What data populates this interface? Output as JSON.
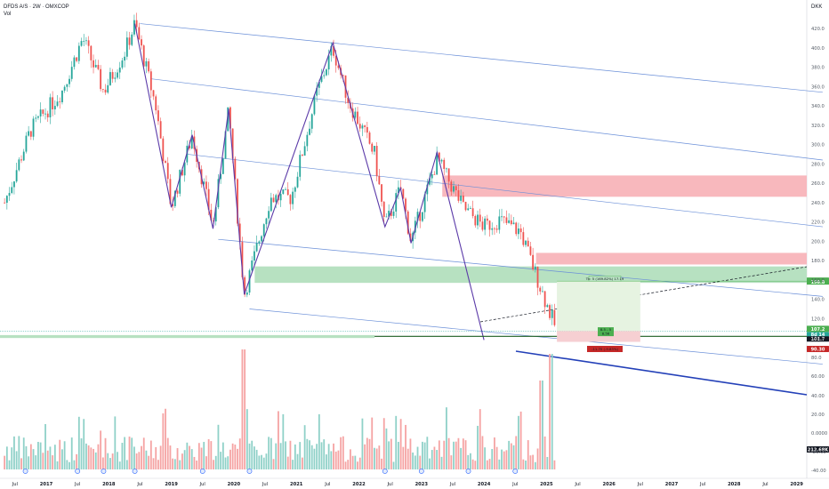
{
  "header": {
    "symbol_line": "DFDS A/S · 2W · OMXCOP",
    "indicator": "Vol",
    "currency": "DKK"
  },
  "chart_data": {
    "type": "candlestick",
    "yaxis": {
      "price_ticks": [
        420.0,
        400.0,
        380.0,
        360.0,
        340.0,
        320.0,
        300.0,
        280.0,
        260.0,
        240.0,
        220.0,
        200.0,
        180.0,
        160.0,
        140.0,
        120.0,
        100.0,
        80.0
      ],
      "volume_ticks": [
        "60.00",
        "40.00",
        "20.00",
        "0.0000",
        "-20.00",
        "-40.00"
      ],
      "ylim": [
        76,
        432
      ]
    },
    "xaxis": {
      "labels": [
        "Jul",
        "2017",
        "Jul",
        "2018",
        "Jul",
        "2019",
        "Jul",
        "2020",
        "Jul",
        "2021",
        "Jul",
        "2022",
        "Jul",
        "2023",
        "Jul",
        "2024",
        "Jul",
        "2025",
        "Jul",
        "2026",
        "Jul",
        "2027",
        "Jul",
        "2028",
        "Jul",
        "2029"
      ]
    },
    "key_points": [
      {
        "date": "2016-05",
        "close": 240
      },
      {
        "date": "2016-10",
        "close": 315
      },
      {
        "date": "2017-04",
        "close": 355
      },
      {
        "date": "2017-08",
        "close": 410
      },
      {
        "date": "2017-12",
        "close": 355
      },
      {
        "date": "2018-04",
        "close": 395
      },
      {
        "date": "2018-06",
        "close": 425
      },
      {
        "date": "2018-10",
        "close": 340
      },
      {
        "date": "2019-01",
        "close": 235
      },
      {
        "date": "2019-05",
        "close": 310
      },
      {
        "date": "2019-09",
        "close": 215
      },
      {
        "date": "2019-12",
        "close": 335
      },
      {
        "date": "2020-03",
        "close": 145
      },
      {
        "date": "2020-08",
        "close": 245
      },
      {
        "date": "2020-12",
        "close": 245
      },
      {
        "date": "2021-05",
        "close": 355
      },
      {
        "date": "2021-08",
        "close": 400
      },
      {
        "date": "2021-11",
        "close": 345
      },
      {
        "date": "2022-04",
        "close": 290
      },
      {
        "date": "2022-06",
        "close": 215
      },
      {
        "date": "2022-09",
        "close": 255
      },
      {
        "date": "2022-11",
        "close": 200
      },
      {
        "date": "2023-04",
        "close": 285
      },
      {
        "date": "2023-09",
        "close": 235
      },
      {
        "date": "2024-01",
        "close": 215
      },
      {
        "date": "2024-04",
        "close": 222
      },
      {
        "date": "2024-08",
        "close": 210
      },
      {
        "date": "2024-11",
        "close": 165
      },
      {
        "date": "2025-01",
        "close": 135
      },
      {
        "date": "2025-03",
        "close": 107.2
      }
    ],
    "zones": [
      {
        "kind": "resistance",
        "from": 246,
        "to": 268
      },
      {
        "kind": "resistance",
        "from": 176,
        "to": 188
      },
      {
        "kind": "support",
        "from": 157,
        "to": 174
      },
      {
        "kind": "support",
        "from": 100,
        "to": 103
      }
    ],
    "channel_lines": [
      {
        "x1": "2018-07",
        "y1": 425,
        "x2": "2029-06",
        "y2": 354
      },
      {
        "x1": "2018-09",
        "y1": 368,
        "x2": "2029-06",
        "y2": 284
      },
      {
        "x1": "2019-04",
        "y1": 290,
        "x2": "2029-06",
        "y2": 215
      },
      {
        "x1": "2019-10",
        "y1": 202,
        "x2": "2029-06",
        "y2": 143
      },
      {
        "x1": "2020-04",
        "y1": 130,
        "x2": "2029-06",
        "y2": 73
      }
    ],
    "labels": {
      "price_last": "107.2",
      "price_last_sub": "8d 14",
      "price_support": "101.7",
      "price_level": "158.8",
      "price_stop": "90.30",
      "volume_last": "212.68K",
      "target_text": "Tk: 5 (169.82%) 17.19",
      "entry_text": "8.5 - 5",
      "entry_sub": "8.56",
      "stop_text": "-11.70 (-9.83%)"
    },
    "colors": {
      "up": "#26a69a",
      "down": "#ef5350",
      "vol_up": "#8fd1c8",
      "vol_down": "#f5a3a3",
      "channel": "#6a8fd8",
      "wave": "#5b3aa8",
      "resistance": "#f8b8bd",
      "support": "#b7e1c1",
      "badge_green": "#4caf50",
      "badge_red": "#c62828",
      "badge_dark": "#131722"
    },
    "grid": false,
    "legend": "none"
  }
}
